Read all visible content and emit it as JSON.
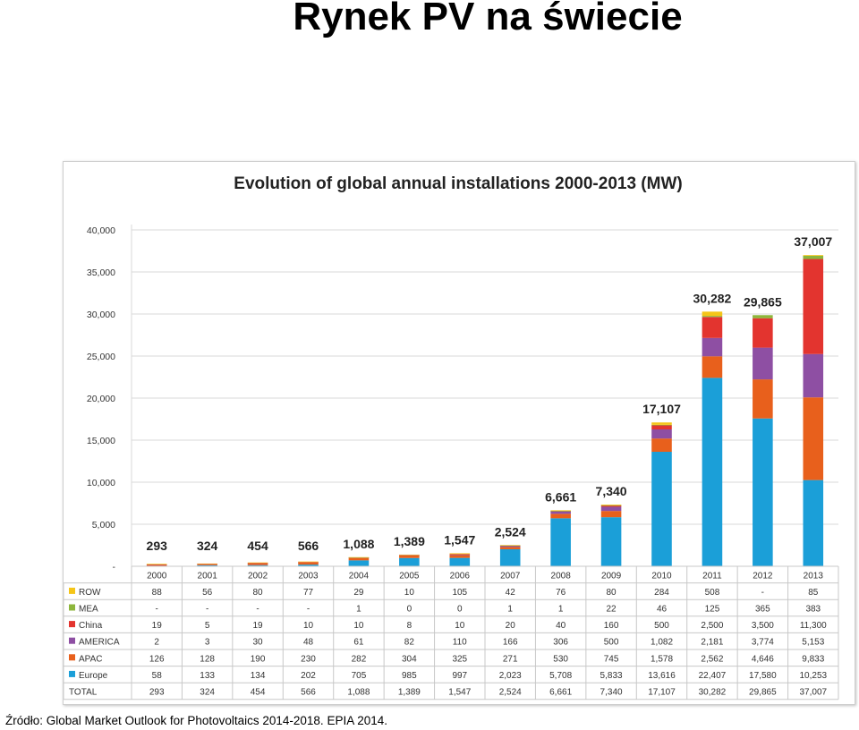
{
  "page": {
    "title": "Rynek PV na świecie",
    "source": "Źródło: Global Market Outlook for Photovoltaics 2014-2018. EPIA 2014."
  },
  "chart_data": {
    "type": "bar",
    "stacked": true,
    "title": "Evolution of global annual installations 2000-2013 (MW)",
    "categories": [
      "2000",
      "2001",
      "2002",
      "2003",
      "2004",
      "2005",
      "2006",
      "2007",
      "2008",
      "2009",
      "2010",
      "2011",
      "2012",
      "2013"
    ],
    "ylim": [
      0,
      40000
    ],
    "yticks": [
      0,
      5000,
      10000,
      15000,
      20000,
      25000,
      30000,
      35000,
      40000
    ],
    "ytick_labels": [
      "-",
      "5,000",
      "10,000",
      "15,000",
      "20,000",
      "25,000",
      "30,000",
      "35,000",
      "40,000"
    ],
    "grid": true,
    "legend": "table-below",
    "totals": [
      293,
      324,
      454,
      566,
      1088,
      1389,
      1547,
      2524,
      6661,
      7340,
      17107,
      30282,
      29865,
      37007
    ],
    "total_labels": [
      "293",
      "324",
      "454",
      "566",
      "1,088",
      "1,389",
      "1,547",
      "2,524",
      "6,661",
      "7,340",
      "17,107",
      "30,282",
      "29,865",
      "37,007"
    ],
    "stack_order": [
      "Europe",
      "APAC",
      "AMERICA",
      "China",
      "MEA",
      "ROW"
    ],
    "series": [
      {
        "name": "ROW",
        "color": "#f5c518",
        "values": [
          88,
          56,
          80,
          77,
          29,
          10,
          105,
          42,
          76,
          80,
          284,
          508,
          null,
          85
        ],
        "labels": [
          "88",
          "56",
          "80",
          "77",
          "29",
          "10",
          "105",
          "42",
          "76",
          "80",
          "284",
          "508",
          "-",
          "85"
        ]
      },
      {
        "name": "MEA",
        "color": "#8db63c",
        "values": [
          null,
          null,
          null,
          null,
          1,
          0,
          0,
          1,
          1,
          22,
          46,
          125,
          365,
          383
        ],
        "labels": [
          "-",
          "-",
          "-",
          "-",
          "1",
          "0",
          "0",
          "1",
          "1",
          "22",
          "46",
          "125",
          "365",
          "383"
        ]
      },
      {
        "name": "China",
        "color": "#e3342f",
        "values": [
          19,
          5,
          19,
          10,
          10,
          8,
          10,
          20,
          40,
          160,
          500,
          2500,
          3500,
          11300
        ],
        "labels": [
          "19",
          "5",
          "19",
          "10",
          "10",
          "8",
          "10",
          "20",
          "40",
          "160",
          "500",
          "2,500",
          "3,500",
          "11,300"
        ]
      },
      {
        "name": "AMERICA",
        "color": "#8e4fa3",
        "values": [
          2,
          3,
          30,
          48,
          61,
          82,
          110,
          166,
          306,
          500,
          1082,
          2181,
          3774,
          5153
        ],
        "labels": [
          "2",
          "3",
          "30",
          "48",
          "61",
          "82",
          "110",
          "166",
          "306",
          "500",
          "1,082",
          "2,181",
          "3,774",
          "5,153"
        ]
      },
      {
        "name": "APAC",
        "color": "#e8601c",
        "values": [
          126,
          128,
          190,
          230,
          282,
          304,
          325,
          271,
          530,
          745,
          1578,
          2562,
          4646,
          9833
        ],
        "labels": [
          "126",
          "128",
          "190",
          "230",
          "282",
          "304",
          "325",
          "271",
          "530",
          "745",
          "1,578",
          "2,562",
          "4,646",
          "9,833"
        ]
      },
      {
        "name": "Europe",
        "color": "#1b9fd8",
        "values": [
          58,
          133,
          134,
          202,
          705,
          985,
          997,
          2023,
          5708,
          5833,
          13616,
          22407,
          17580,
          10253
        ],
        "labels": [
          "58",
          "133",
          "134",
          "202",
          "705",
          "985",
          "997",
          "2,023",
          "5,708",
          "5,833",
          "13,616",
          "22,407",
          "17,580",
          "10,253"
        ]
      }
    ],
    "total_row_label": "TOTAL"
  }
}
